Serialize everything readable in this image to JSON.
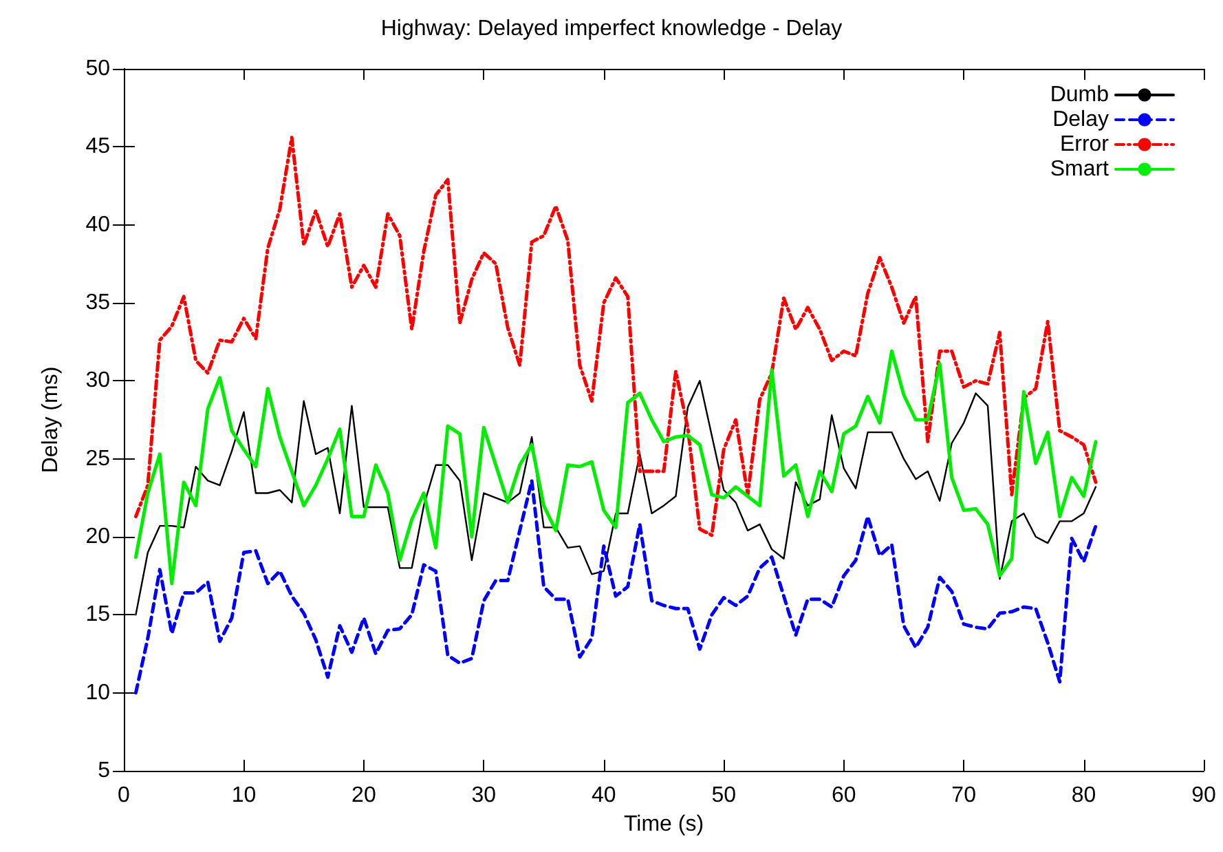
{
  "chart_data": {
    "type": "line",
    "title": "Highway: Delayed imperfect knowledge - Delay",
    "xlabel": "Time (s)",
    "ylabel": "Delay (ms)",
    "x": [
      1,
      2,
      3,
      4,
      5,
      6,
      7,
      8,
      9,
      10,
      11,
      12,
      13,
      14,
      15,
      16,
      17,
      18,
      19,
      20,
      21,
      22,
      23,
      24,
      25,
      26,
      27,
      28,
      29,
      30,
      31,
      32,
      33,
      34,
      35,
      36,
      37,
      38,
      39,
      40,
      41,
      42,
      43,
      44,
      45,
      46,
      47,
      48,
      49,
      50,
      51,
      52,
      53,
      54,
      55,
      56,
      57,
      58,
      59,
      60,
      61,
      62,
      63,
      64,
      65,
      66,
      67,
      68,
      69,
      70,
      71,
      72,
      73,
      74,
      75,
      76,
      77,
      78,
      79,
      80,
      81
    ],
    "xlim": [
      0,
      90
    ],
    "xticks": [
      0,
      10,
      20,
      30,
      40,
      50,
      60,
      70,
      80,
      90
    ],
    "ylim": [
      5,
      50
    ],
    "yticks": [
      5,
      10,
      15,
      20,
      25,
      30,
      35,
      40,
      45,
      50
    ],
    "grid": false,
    "legend": "top right",
    "marker": "none",
    "series": [
      {
        "name": "Dumb",
        "color": "#000000",
        "line_style": "solid",
        "values": [
          15,
          19,
          20.7,
          20.7,
          20.6,
          24.5,
          23.6,
          23.3,
          25.5,
          28,
          22.8,
          22.8,
          23,
          22.2,
          28.7,
          25.3,
          25.7,
          21.5,
          28.4,
          21.9,
          21.9,
          21.9,
          18,
          18,
          22,
          24.6,
          24.6,
          23.6,
          18.5,
          22.8,
          22.5,
          22.2,
          22.8,
          26.4,
          20.6,
          20.6,
          19.3,
          19.4,
          17.6,
          17.8,
          21.5,
          21.5,
          25.3,
          21.5,
          22,
          22.6,
          28.3,
          30,
          26.5,
          23,
          22.2,
          20.4,
          20.8,
          19.2,
          18.6,
          23.5,
          22,
          22.4,
          27.8,
          24.4,
          23.1,
          26.7,
          26.7,
          26.7,
          25,
          23.7,
          24.2,
          22.3,
          26,
          27.3,
          29.2,
          28.4,
          17.3,
          21,
          21.5,
          20,
          19.6,
          21,
          21,
          21.5,
          23.2
        ]
      },
      {
        "name": "Delay",
        "color": "#0000ff",
        "line_style": "dashed",
        "values": [
          10,
          13.5,
          17.9,
          13.8,
          16.4,
          16.4,
          17.1,
          13.3,
          14.8,
          19,
          19.1,
          17,
          17.8,
          16.2,
          15.1,
          13.4,
          11,
          14.3,
          12.6,
          14.8,
          12.5,
          14,
          14.1,
          15,
          18.2,
          17.8,
          12.4,
          11.9,
          12.2,
          15.9,
          17.2,
          17.2,
          20.4,
          23.6,
          16.8,
          16,
          16,
          12.3,
          13.5,
          19.4,
          16.2,
          16.8,
          20.8,
          15.9,
          15.6,
          15.4,
          15.4,
          12.8,
          15,
          16.1,
          15.6,
          16.2,
          18,
          18.7,
          16.2,
          13.7,
          16,
          16,
          15.5,
          17.5,
          18.5,
          21.3,
          18.8,
          19.5,
          14.3,
          12.9,
          14.2,
          17.4,
          16.5,
          14.4,
          14.2,
          14.1,
          15.1,
          15.2,
          15.5,
          15.4,
          13.2,
          10.7,
          19.9,
          18.4,
          20.7
        ]
      },
      {
        "name": "Error",
        "color": "#ff0000",
        "line_style": "dotted",
        "values": [
          21.3,
          23.3,
          32.6,
          33.5,
          35.4,
          31.3,
          30.5,
          32.6,
          32.5,
          34,
          32.7,
          38.5,
          41,
          45.6,
          38.7,
          40.9,
          38.6,
          40.7,
          36,
          37.4,
          36,
          40.7,
          39.3,
          33.3,
          38.3,
          41.9,
          42.9,
          33.7,
          36.5,
          38.2,
          37.5,
          33.4,
          31,
          38.9,
          39.3,
          41.2,
          39,
          31,
          28.7,
          35,
          36.6,
          35.4,
          24.2,
          24.2,
          24.2,
          30.6,
          27,
          20.5,
          20.1,
          25.6,
          27.5,
          22.7,
          28.8,
          30.5,
          35.3,
          33.3,
          34.7,
          33.3,
          31.3,
          31.9,
          31.6,
          35.6,
          37.9,
          36,
          33.7,
          35.4,
          26.1,
          31.9,
          31.9,
          29.6,
          30,
          29.8,
          33.1,
          22.7,
          28.9,
          29.5,
          33.8,
          26.8,
          26.4,
          25.9,
          23.5
        ]
      },
      {
        "name": "Smart",
        "color": "#00ee00",
        "line_style": "solid",
        "values": [
          18.7,
          22.8,
          25.3,
          17,
          23.5,
          22,
          28.2,
          30.2,
          26.8,
          25.6,
          24.5,
          29.5,
          26.4,
          24.2,
          22,
          23.3,
          25,
          26.9,
          21.3,
          21.3,
          24.6,
          22.8,
          18.5,
          21.1,
          22.8,
          19.3,
          27.1,
          26.6,
          20,
          27,
          24.6,
          22.2,
          24.6,
          25.9,
          22,
          20.4,
          24.6,
          24.5,
          24.8,
          21.7,
          20.6,
          28.6,
          29.2,
          27.5,
          26.1,
          26.4,
          26.5,
          25.9,
          22.7,
          22.5,
          23.2,
          22.6,
          22,
          30.7,
          23.9,
          24.6,
          21.3,
          24.2,
          22.9,
          26.6,
          27.1,
          29,
          27.3,
          31.9,
          29.1,
          27.5,
          27.5,
          31.1,
          23.8,
          21.7,
          21.8,
          20.8,
          17.5,
          18.6,
          29.3,
          24.7,
          26.7,
          21.3,
          23.8,
          22.6,
          26.1
        ]
      }
    ]
  }
}
